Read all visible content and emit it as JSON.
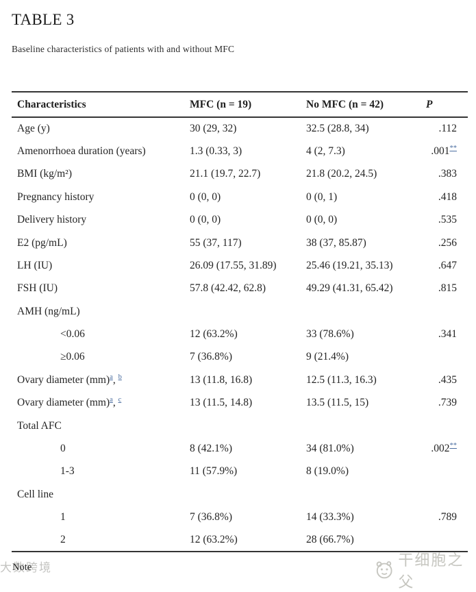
{
  "header": {
    "table_label": "TABLE 3",
    "caption": "Baseline characteristics of patients with and without MFC"
  },
  "table": {
    "columns": [
      {
        "label": "Characteristics"
      },
      {
        "label": "MFC (n = 19)"
      },
      {
        "label": "No MFC (n = 42)"
      },
      {
        "label": "P"
      }
    ],
    "rows": [
      {
        "label": "Age (y)",
        "cells": [
          "30 (29, 32)",
          "32.5 (28.8, 34)"
        ],
        "p": ".112"
      },
      {
        "label": "Amenorrhoea duration (years)",
        "cells": [
          "1.3 (0.33, 3)",
          "4 (2, 7.3)"
        ],
        "p": ".001",
        "p_sup": "**"
      },
      {
        "label": "BMI (kg/m²)",
        "cells": [
          "21.1 (19.7, 22.7)",
          "21.8 (20.2, 24.5)"
        ],
        "p": ".383"
      },
      {
        "label": "Pregnancy history",
        "cells": [
          "0 (0, 0)",
          "0 (0, 1)"
        ],
        "p": ".418"
      },
      {
        "label": "Delivery history",
        "cells": [
          "0 (0, 0)",
          "0 (0, 0)"
        ],
        "p": ".535"
      },
      {
        "label": "E2 (pg/mL)",
        "cells": [
          "55 (37, 117)",
          "38 (37, 85.87)"
        ],
        "p": ".256"
      },
      {
        "label": "LH (IU)",
        "cells": [
          "26.09 (17.55, 31.89)",
          "25.46 (19.21, 35.13)"
        ],
        "p": ".647"
      },
      {
        "label": "FSH (IU)",
        "cells": [
          "57.8 (42.42, 62.8)",
          "49.29 (41.31, 65.42)"
        ],
        "p": ".815"
      },
      {
        "label": "AMH (ng/mL)",
        "section": true,
        "cells": [
          "",
          ""
        ],
        "p": ""
      },
      {
        "label": "<0.06",
        "indent": true,
        "cells": [
          "12 (63.2%)",
          "33 (78.6%)"
        ],
        "p": ".341"
      },
      {
        "label": "≥0.06",
        "indent": true,
        "cells": [
          "7 (36.8%)",
          "9 (21.4%)"
        ],
        "p": ""
      },
      {
        "label": "Ovary diameter (mm)",
        "label_sups": [
          "a",
          "b"
        ],
        "cells": [
          "13 (11.8, 16.8)",
          "12.5 (11.3, 16.3)"
        ],
        "p": ".435"
      },
      {
        "label": "Ovary diameter (mm)",
        "label_sups": [
          "a",
          "c"
        ],
        "cells": [
          "13 (11.5, 14.8)",
          "13.5 (11.5, 15)"
        ],
        "p": ".739"
      },
      {
        "label": "Total AFC",
        "section": true,
        "cells": [
          "",
          ""
        ],
        "p": ""
      },
      {
        "label": "0",
        "indent": true,
        "cells": [
          "8 (42.1%)",
          "34 (81.0%)"
        ],
        "p": ".002",
        "p_sup": "**"
      },
      {
        "label": "1-3",
        "indent": true,
        "cells": [
          "11 (57.9%)",
          "8 (19.0%)"
        ],
        "p": ""
      },
      {
        "label": "Cell line",
        "section": true,
        "cells": [
          "",
          ""
        ],
        "p": ""
      },
      {
        "label": "1",
        "indent": true,
        "cells": [
          "7 (36.8%)",
          "14 (33.3%)"
        ],
        "p": ".789"
      },
      {
        "label": "2",
        "indent": true,
        "cells": [
          "12 (63.2%)",
          "28 (66.7%)"
        ],
        "p": ""
      }
    ]
  },
  "footer": {
    "note_label": "Note",
    "watermark_left": "大数跨境",
    "watermark_right": "干细胞之父"
  },
  "colors": {
    "text": "#242424",
    "footnote_link": "#4a6da0",
    "table_border": "#343434",
    "watermark": "#c6c6c0"
  }
}
